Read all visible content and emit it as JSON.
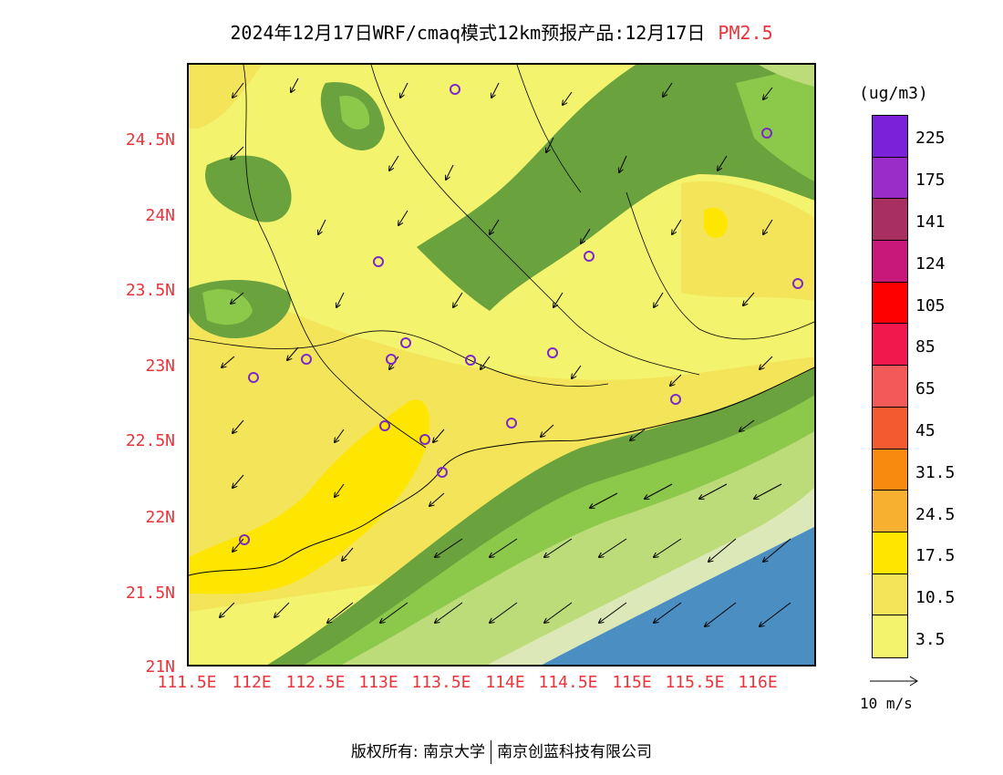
{
  "title": {
    "main": "2024年12月17日WRF/cmaq模式12km预报产品:12月17日",
    "pollutant": "PM2.5"
  },
  "axes": {
    "y_ticks": [
      "24.5N",
      "24N",
      "23.5N",
      "23N",
      "22.5N",
      "22N",
      "21.5N",
      "21N"
    ],
    "x_ticks": [
      "111.5E",
      "112E",
      "112.5E",
      "113E",
      "113.5E",
      "114E",
      "114.5E",
      "115E",
      "115.5E",
      "116E"
    ]
  },
  "colorbar": {
    "unit": "(ug/m3)",
    "colors_top_to_bottom": [
      "#7b22d8",
      "#9a2cc8",
      "#a83060",
      "#c8187a",
      "#ff0000",
      "#f0184c",
      "#f25a5a",
      "#f45a30",
      "#f88a10",
      "#f8b030",
      "#f8a840",
      "#f8e400",
      "#f0d848"
    ],
    "labels": [
      "225",
      "175",
      "141",
      "124",
      "105",
      "85",
      "65",
      "45",
      "31.5",
      "24.5",
      "17.5",
      "10.5",
      "3.5"
    ]
  },
  "legend_colors": {
    "c65_plus": "#ffe600",
    "c45": "#f3e45a",
    "c40": "#f3f36e",
    "c31": "#6aa23e",
    "c28": "#8cc84a",
    "c24": "#bcdc7a",
    "c20": "#dde8b8",
    "c17": "#4a8ec2",
    "station_circle": "#7a2ac8",
    "axis_label_color": "#e8343a"
  },
  "wind_reference": {
    "label": "10 m/s"
  },
  "footer": {
    "copyright": "版权所有: 南京大学",
    "company": "南京创蓝科技有限公司"
  }
}
